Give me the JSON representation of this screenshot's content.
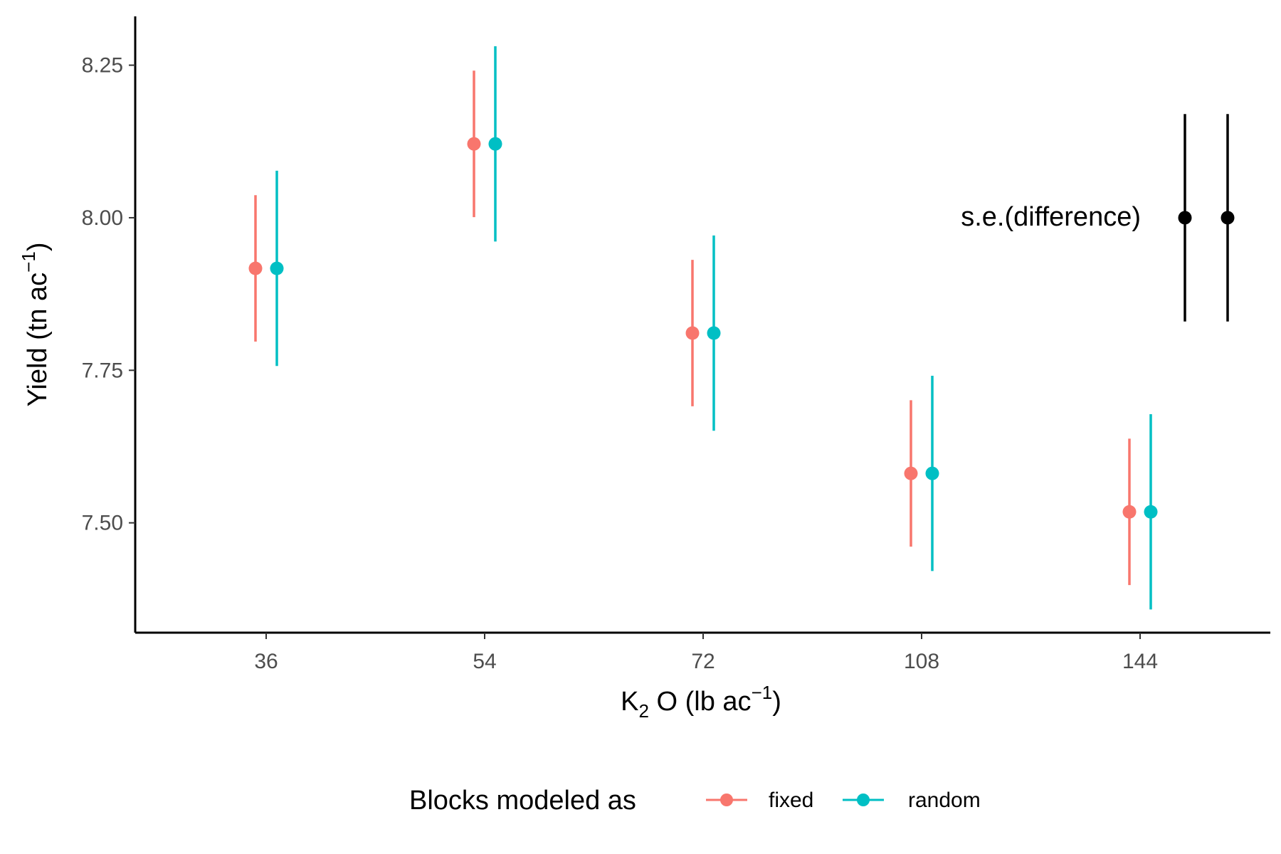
{
  "chart_data": {
    "type": "scatter",
    "categories": [
      "36",
      "54",
      "72",
      "108",
      "144"
    ],
    "series": [
      {
        "name": "fixed",
        "color": "#F8766D",
        "values": [
          7.917,
          8.121,
          7.811,
          7.581,
          7.518
        ],
        "lower": [
          7.797,
          8.001,
          7.691,
          7.461,
          7.398
        ],
        "upper": [
          8.037,
          8.241,
          7.931,
          7.701,
          7.638
        ]
      },
      {
        "name": "random",
        "color": "#00BFC4",
        "values": [
          7.917,
          8.121,
          7.811,
          7.581,
          7.518
        ],
        "lower": [
          7.757,
          7.961,
          7.651,
          7.421,
          7.358
        ],
        "upper": [
          8.077,
          8.281,
          7.971,
          7.741,
          7.678
        ]
      }
    ],
    "sed": {
      "label": "s.e.(difference)",
      "center": 8.0,
      "bars": [
        {
          "lower": 7.83,
          "upper": 8.17
        },
        {
          "lower": 7.83,
          "upper": 8.17
        }
      ]
    },
    "ylim": [
      7.32,
      8.33
    ],
    "yticks": [
      7.5,
      7.75,
      8.0,
      8.25
    ],
    "ytick_labels": [
      "7.50",
      "7.75",
      "8.00",
      "8.25"
    ],
    "xlabel": {
      "main": "K",
      "sub": "2",
      "rest": " O (lb ac",
      "sup": "−1",
      "close": ")"
    },
    "ylabel": {
      "main": "Yield (tn ac",
      "sup": "−1",
      "close": ")"
    },
    "legend": {
      "title": "Blocks modeled as",
      "position": "bottom"
    },
    "grid": false
  }
}
